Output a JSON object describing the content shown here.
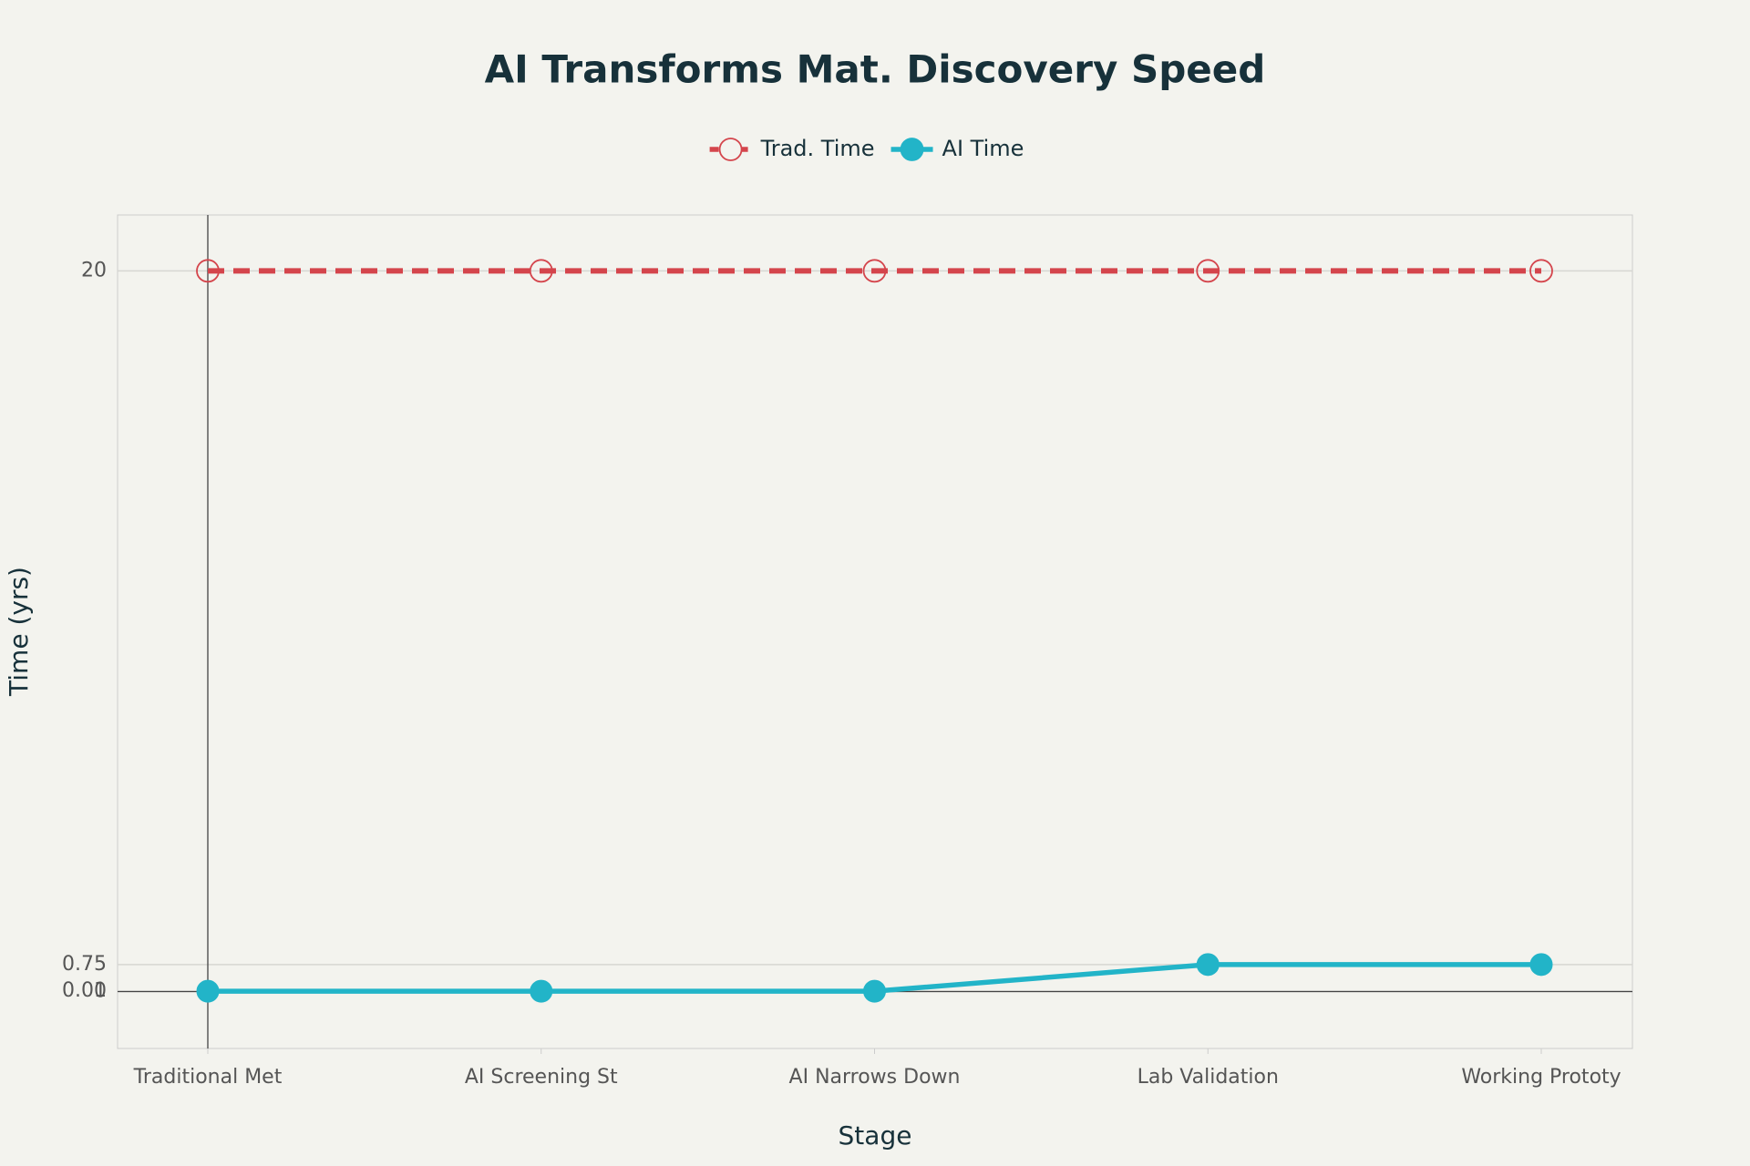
{
  "chart_data": {
    "type": "line",
    "title": "AI Transforms Mat. Discovery Speed",
    "x_label": "Stage",
    "y_label": "Time (yrs)",
    "categories": [
      "Traditional Met",
      "AI Screening St",
      "AI Narrows Down",
      "Lab Validation",
      "Working Prototy"
    ],
    "series": [
      {
        "name": "Trad. Time",
        "color": "#d4454c",
        "dash": true,
        "marker": "open",
        "values": [
          20,
          20,
          20,
          20,
          20
        ]
      },
      {
        "name": "AI Time",
        "color": "#22b4c8",
        "dash": false,
        "marker": "filled",
        "values": [
          0.01,
          0.01,
          0.01,
          0.75,
          0.75
        ]
      }
    ],
    "ylim": [
      -1.58,
      21.55
    ],
    "yticks": [
      0,
      0.01,
      0.75,
      20
    ],
    "grid": true,
    "legend": "top"
  }
}
